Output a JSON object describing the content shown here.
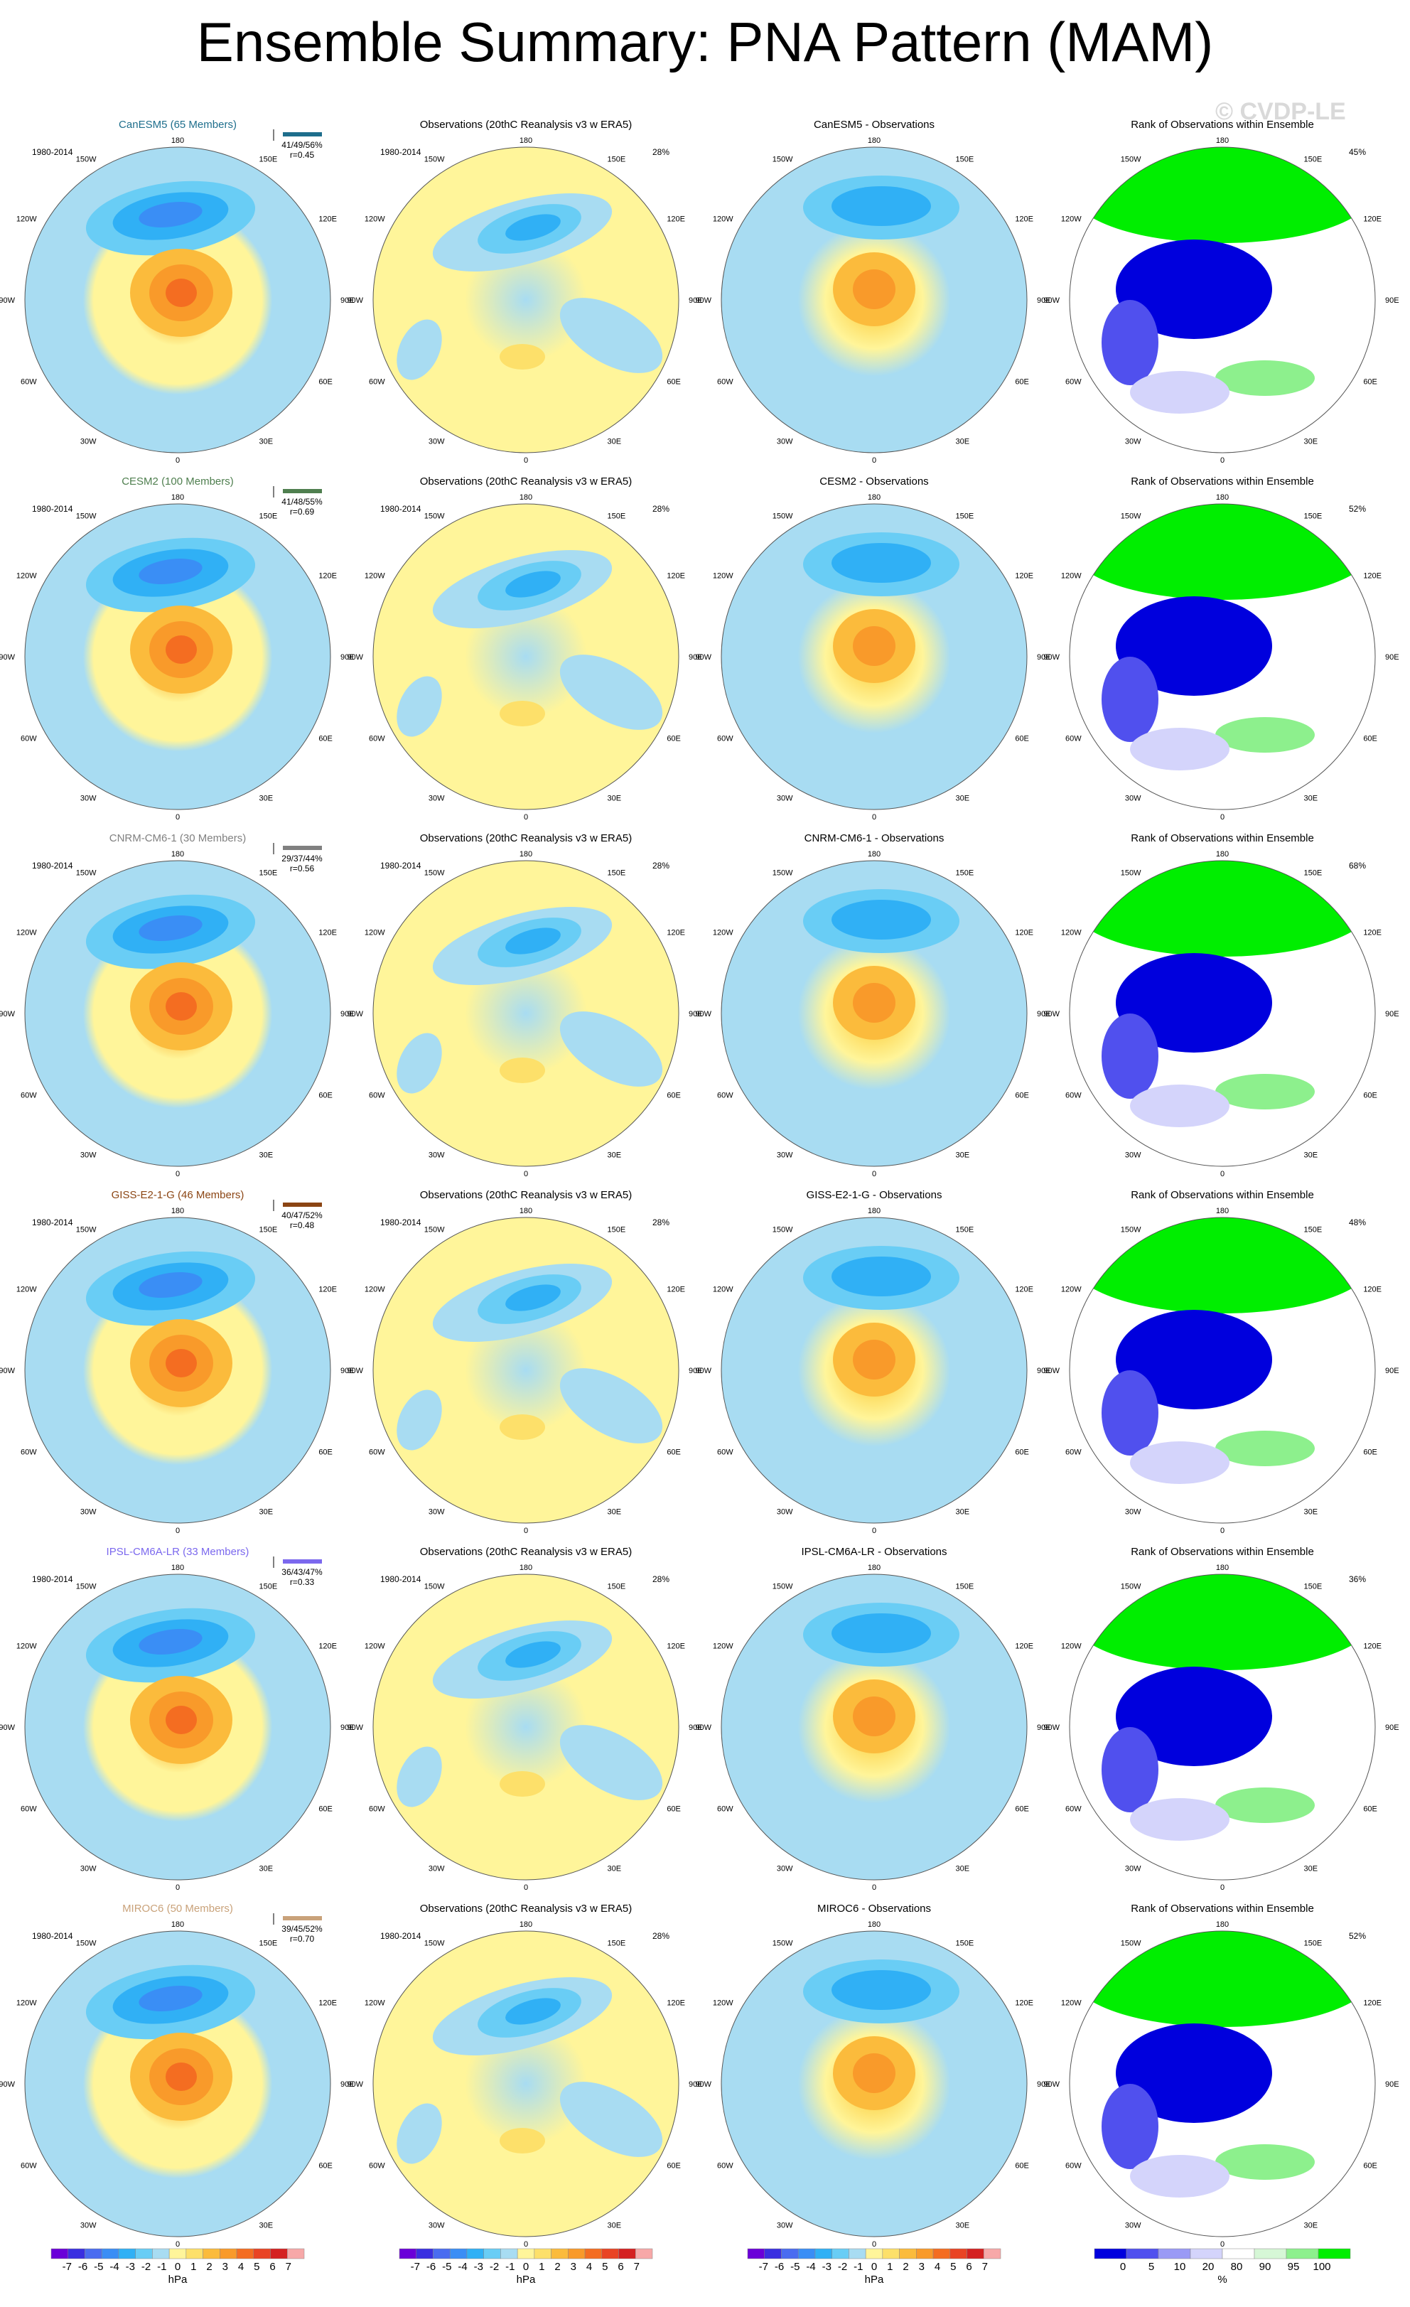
{
  "title": "Ensemble Summary: PNA Pattern (MAM)",
  "watermark": "© CVDP-LE",
  "period": "1980-2014",
  "obs_title": "Observations (20thC Reanalysis v3 w ERA5)",
  "obs_pct": "28%",
  "rank_title": "Rank of Observations within Ensemble",
  "lon_labels": {
    "top": "180",
    "nw": "150W",
    "ne": "150E",
    "w1": "120W",
    "e1": "120E",
    "w2": "90W",
    "e2": "90E",
    "w3": "60W",
    "e3": "60E",
    "sw": "30W",
    "se": "30E",
    "bottom": "0"
  },
  "models": [
    {
      "name": "CanESM5",
      "members": "CanESM5 (65 Members)",
      "diff_title": "CanESM5 - Observations",
      "stats": "41/49/56%",
      "r": "r=0.45",
      "rank_pct": "45%",
      "color": "#1e6e8c"
    },
    {
      "name": "CESM2",
      "members": "CESM2 (100 Members)",
      "diff_title": "CESM2 - Observations",
      "stats": "41/48/55%",
      "r": "r=0.69",
      "rank_pct": "52%",
      "color": "#4f7f4f"
    },
    {
      "name": "CNRM-CM6-1",
      "members": "CNRM-CM6-1 (30 Members)",
      "diff_title": "CNRM-CM6-1 - Observations",
      "stats": "29/37/44%",
      "r": "r=0.56",
      "rank_pct": "68%",
      "color": "#808080"
    },
    {
      "name": "GISS-E2-1-G",
      "members": "GISS-E2-1-G (46 Members)",
      "diff_title": "GISS-E2-1-G - Observations",
      "stats": "40/47/52%",
      "r": "r=0.48",
      "rank_pct": "48%",
      "color": "#8b4513"
    },
    {
      "name": "IPSL-CM6A-LR",
      "members": "IPSL-CM6A-LR (33 Members)",
      "diff_title": "IPSL-CM6A-LR - Observations",
      "stats": "36/43/47%",
      "r": "r=0.33",
      "rank_pct": "36%",
      "color": "#7b68ee"
    },
    {
      "name": "MIROC6",
      "members": "MIROC6 (50 Members)",
      "diff_title": "MIROC6 - Observations",
      "stats": "39/45/52%",
      "r": "r=0.70",
      "rank_pct": "52%",
      "color": "#c9a27a"
    }
  ],
  "chart_data": [
    {
      "type": "colorbar",
      "name": "PNA pattern colorbar",
      "unit": "hPa",
      "labels": [
        "-7",
        "-6",
        "-5",
        "-4",
        "-3",
        "-2",
        "-1",
        "0",
        "1",
        "2",
        "3",
        "4",
        "5",
        "6",
        "7"
      ],
      "colors": [
        "#6a00d8",
        "#3a2fe0",
        "#4a6cf0",
        "#3a8ef5",
        "#30b0f5",
        "#69cdf5",
        "#a8dcf2",
        "#fff59a",
        "#fde06a",
        "#fbbb3c",
        "#f99a2a",
        "#f46d21",
        "#e94424",
        "#d42020",
        "#f7a8a8"
      ]
    },
    {
      "type": "colorbar",
      "name": "rank colorbar",
      "unit": "%",
      "labels": [
        "0",
        "5",
        "10",
        "20",
        "80",
        "90",
        "95",
        "100"
      ],
      "colors": [
        "#0000dd",
        "#5050ee",
        "#9a9af5",
        "#d4d4fb",
        "#ffffff",
        "#d6f7d6",
        "#8df08d",
        "#00ee00"
      ]
    }
  ]
}
